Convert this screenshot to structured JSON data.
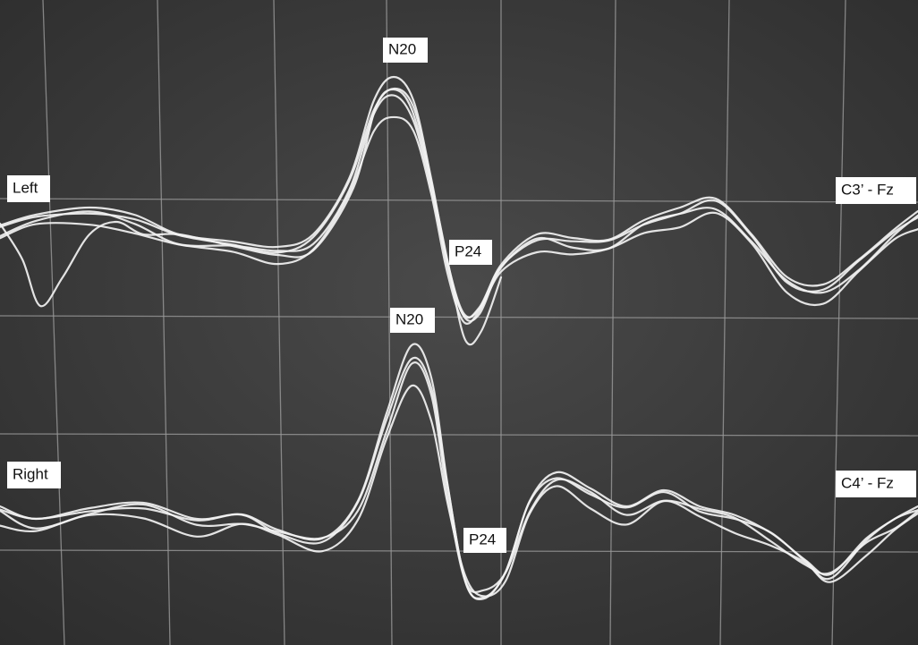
{
  "top_channel": {
    "side": "Left",
    "montage": "C3’ - Fz",
    "peaks": [
      "N20",
      "P24"
    ]
  },
  "bottom_channel": {
    "side": "Right",
    "montage": "C4’ - Fz",
    "peaks": [
      "N20",
      "P24"
    ]
  }
}
